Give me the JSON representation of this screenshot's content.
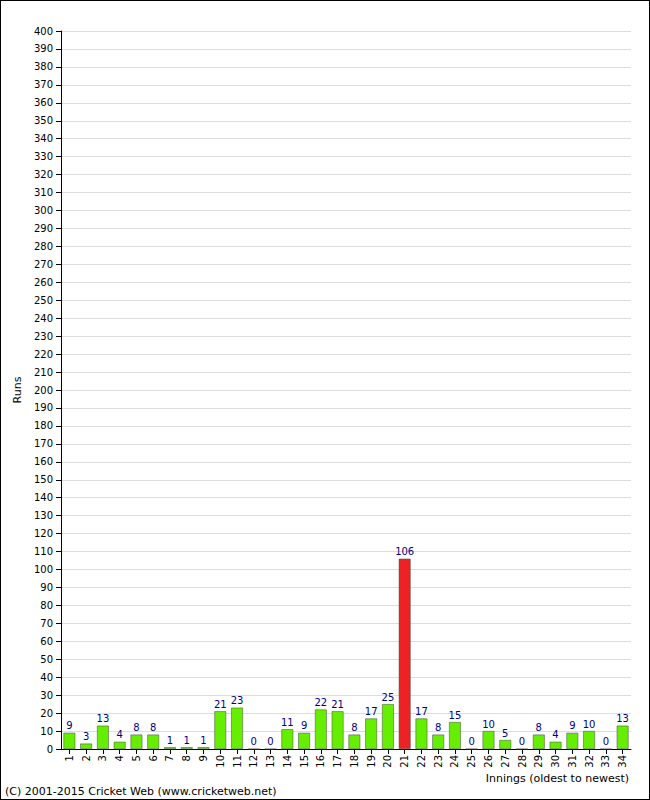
{
  "chart_data": {
    "type": "bar",
    "x_label": "Innings (oldest to newest)",
    "y_label": "Runs",
    "annotations": [
      "(C) 2001-2015 Cricket Web (www.cricketweb.net)"
    ],
    "categories": [
      "1",
      "2",
      "3",
      "4",
      "5",
      "6",
      "7",
      "8",
      "9",
      "10",
      "11",
      "12",
      "13",
      "14",
      "15",
      "16",
      "17",
      "18",
      "19",
      "20",
      "21",
      "22",
      "23",
      "24",
      "25",
      "26",
      "27",
      "28",
      "29",
      "30",
      "31",
      "32",
      "33",
      "34"
    ],
    "values": [
      9,
      3,
      13,
      4,
      8,
      8,
      1,
      1,
      1,
      21,
      23,
      0,
      0,
      11,
      9,
      22,
      21,
      8,
      17,
      25,
      106,
      17,
      8,
      15,
      0,
      10,
      5,
      0,
      8,
      4,
      9,
      10,
      0,
      13
    ],
    "colors": [
      "#66ee00",
      "#66ee00",
      "#66ee00",
      "#66ee00",
      "#66ee00",
      "#66ee00",
      "#66ee00",
      "#66ee00",
      "#66ee00",
      "#66ee00",
      "#66ee00",
      "#66ee00",
      "#66ee00",
      "#66ee00",
      "#66ee00",
      "#66ee00",
      "#66ee00",
      "#66ee00",
      "#66ee00",
      "#66ee00",
      "#ee2222",
      "#66ee00",
      "#66ee00",
      "#66ee00",
      "#66ee00",
      "#66ee00",
      "#66ee00",
      "#66ee00",
      "#66ee00",
      "#66ee00",
      "#66ee00",
      "#66ee00",
      "#66ee00",
      "#66ee00"
    ],
    "ylim": [
      0,
      400
    ],
    "yticks": [
      0,
      10,
      20,
      30,
      40,
      50,
      60,
      70,
      80,
      90,
      100,
      110,
      120,
      130,
      140,
      150,
      160,
      170,
      180,
      190,
      200,
      210,
      220,
      230,
      240,
      250,
      260,
      270,
      280,
      290,
      300,
      310,
      320,
      330,
      340,
      350,
      360,
      370,
      380,
      390,
      400
    ],
    "grid": true,
    "data_labels": true
  }
}
